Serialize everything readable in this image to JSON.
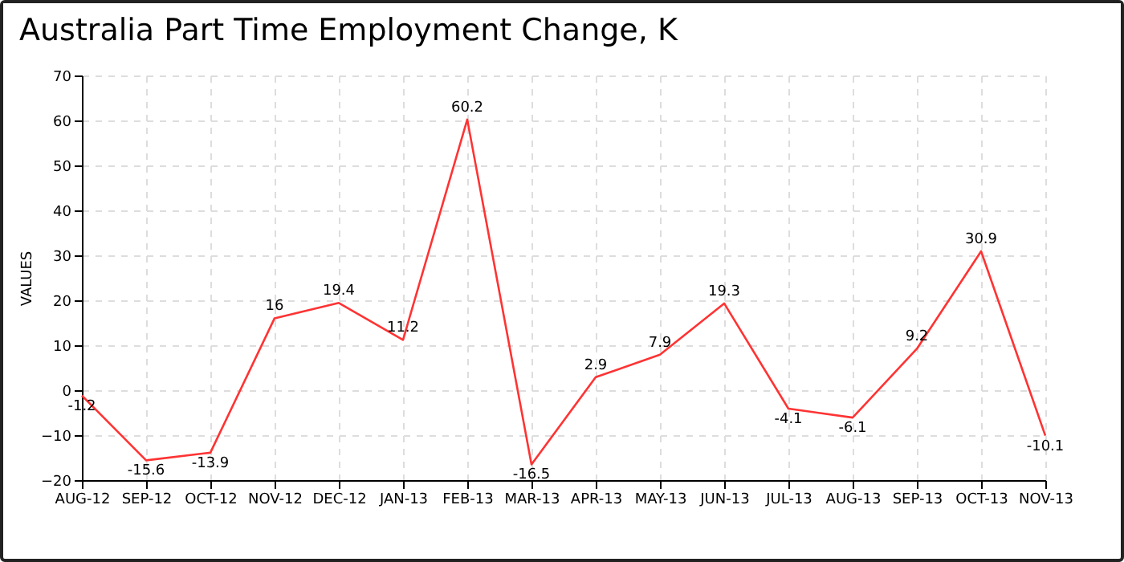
{
  "chart_data": {
    "type": "line",
    "title": "Australia Part Time Employment Change, K",
    "ylabel": "VALUES",
    "categories": [
      "AUG-12",
      "SEP-12",
      "OCT-12",
      "NOV-12",
      "DEC-12",
      "JAN-13",
      "FEB-13",
      "MAR-13",
      "APR-13",
      "MAY-13",
      "JUN-13",
      "JUL-13",
      "AUG-13",
      "SEP-13",
      "OCT-13",
      "NOV-13"
    ],
    "series": [
      {
        "color": "#ff3333",
        "values": [
          -1.2,
          -15.6,
          -13.9,
          16,
          19.4,
          11.2,
          60.2,
          -16.5,
          2.9,
          7.9,
          19.3,
          -4.1,
          -6.1,
          9.2,
          30.9,
          -10.1
        ]
      }
    ],
    "ylim": [
      -20,
      70
    ],
    "yticks": [
      -20,
      -10,
      0,
      10,
      20,
      30,
      40,
      50,
      60,
      70
    ],
    "grid": true,
    "data_labels": true,
    "marker": "none",
    "line_style": "solid"
  }
}
